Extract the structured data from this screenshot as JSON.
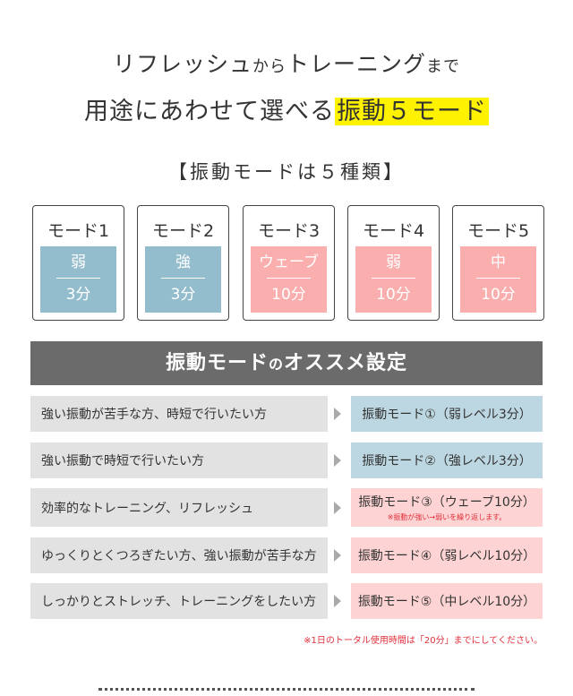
{
  "heading": {
    "line1_a": "リフレッシュ",
    "line1_b": "から",
    "line1_c": "トレーニング",
    "line1_d": "まで",
    "line2_a": "用途にあわせて選べる",
    "line2_highlight": "振動５モード"
  },
  "subtitle": "【振動モードは５種類】",
  "modes": [
    {
      "name": "モード1",
      "level": "弱",
      "time": "3分",
      "color": "blue"
    },
    {
      "name": "モード2",
      "level": "強",
      "time": "3分",
      "color": "blue"
    },
    {
      "name": "モード3",
      "level": "ウェーブ",
      "time": "10分",
      "color": "pink"
    },
    {
      "name": "モード4",
      "level": "弱",
      "time": "10分",
      "color": "pink"
    },
    {
      "name": "モード5",
      "level": "中",
      "time": "10分",
      "color": "pink"
    }
  ],
  "recommend": {
    "title_a": "振動モード",
    "title_b": "の",
    "title_c": "オススメ設定",
    "rows": [
      {
        "use": "強い振動が苦手な方、時短で行いたい方",
        "mode": "振動モード①（弱レベル3分）"
      },
      {
        "use": "強い振動で時短で行いたい方",
        "mode": "振動モード②（強レベル3分）"
      },
      {
        "use": "効率的なトレーニング、リフレッシュ",
        "mode": "振動モード③（ウェーブ10分）",
        "note": "※振動が強い→弱いを繰り返します。"
      },
      {
        "use": "ゆっくりとくつろぎたい方、強い振動が苦手な方",
        "mode": "振動モード④（弱レベル10分）"
      },
      {
        "use": "しっかりとストレッチ、トレーニングをしたい方",
        "mode": "振動モード⑤（中レベル10分）"
      }
    ]
  },
  "footnote": "※1日のトータル使用時間は「20分」までにしてください。",
  "colors": {
    "blue": "#93bccd",
    "pink": "#fbaeae",
    "highlight": "#fff200",
    "bar": "#6b6b6b",
    "red": "#e0303a"
  }
}
